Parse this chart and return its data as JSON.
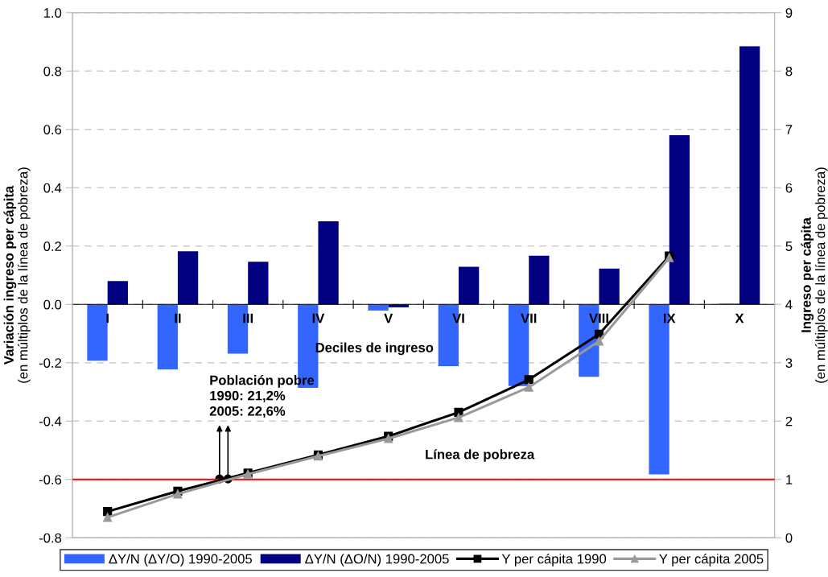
{
  "chart_data": {
    "type": "bar",
    "categories": [
      "I",
      "II",
      "III",
      "IV",
      "V",
      "VI",
      "VII",
      "VIII",
      "IX",
      "X"
    ],
    "xlabel": "Deciles de ingreso",
    "ylabel": "Variación ingreso per cápita\n(en múltiplos de la línea de pobreza)",
    "y2label": "Ingreso per cápita\n(en múltiplos de la línea de pobreza)",
    "series": [
      {
        "name": "ΔY/N (ΔY/O) 1990-2005",
        "color": "#3366ff",
        "values": [
          -0.193,
          -0.223,
          -0.169,
          -0.286,
          -0.021,
          -0.212,
          -0.28,
          -0.248,
          -0.583,
          0.003
        ]
      },
      {
        "name": "ΔY/N (ΔO/N) 1990-2005",
        "color": "#000080",
        "values": [
          0.08,
          0.182,
          0.146,
          0.285,
          -0.01,
          0.129,
          0.167,
          0.123,
          0.58,
          0.885
        ]
      },
      {
        "name": "Y per cápita 1990",
        "type": "line",
        "axis": "y2",
        "color": "#000000",
        "marker": "square",
        "values": [
          0.45,
          0.8,
          1.11,
          1.42,
          1.74,
          2.15,
          2.71,
          3.49,
          4.83,
          null
        ]
      },
      {
        "name": "Y per cápita 2005",
        "type": "line",
        "axis": "y2",
        "color": "#999999",
        "marker": "triangle",
        "values": [
          0.35,
          0.75,
          1.09,
          1.4,
          1.7,
          2.06,
          2.58,
          3.37,
          4.8,
          null
        ]
      }
    ],
    "ylim": [
      -0.8,
      1.0
    ],
    "yticks": [
      -0.8,
      -0.6,
      -0.4,
      -0.2,
      {
        "value": 0,
        "label": "0.0"
      },
      0.2,
      0.4,
      0.6,
      0.8,
      {
        "value": 1,
        "label": "1.0"
      }
    ],
    "y2lim": [
      0,
      9
    ],
    "y2ticks": [
      0,
      1,
      2,
      3,
      4,
      5,
      6,
      7,
      8,
      9
    ],
    "ref_lines": [
      {
        "axis": "y2",
        "value": 1,
        "label": "Línea de pobreza",
        "color": "#ff0000"
      }
    ],
    "annotations": [
      "Población pobre\n1990: 21,2%\n2005: 22,6%"
    ],
    "grid": "y",
    "line_style": "solid",
    "legend": "bottom"
  }
}
